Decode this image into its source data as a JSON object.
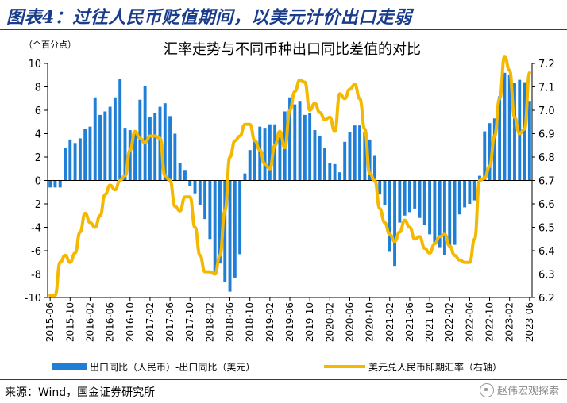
{
  "figure": {
    "title": "图表4：过往人民币贬值期间，以美元计价出口走弱",
    "source": "来源：Wind，国金证券研究所",
    "watermark": "赵伟宏观探索"
  },
  "chart_data": {
    "type": "bar+line",
    "title": "汇率走势与不同币种出口同比差值的对比",
    "unit_label": "（个百分点）",
    "ylim_left": [
      -10,
      10
    ],
    "ylim_right": [
      6.2,
      7.2
    ],
    "yticks_left": [
      "10",
      "8",
      "6",
      "4",
      "2",
      "0",
      "-2",
      "-4",
      "-6",
      "-8",
      "-10"
    ],
    "yticks_right": [
      "7.2",
      "7.1",
      "7.0",
      "6.9",
      "6.8",
      "6.7",
      "6.6",
      "6.5",
      "6.4",
      "6.3",
      "6.2"
    ],
    "x_tick_labels": [
      "2015-06",
      "2015-10",
      "2016-02",
      "2016-06",
      "2016-10",
      "2017-02",
      "2017-06",
      "2017-10",
      "2018-02",
      "2018-06",
      "2018-10",
      "2019-02",
      "2019-06",
      "2019-10",
      "2020-02",
      "2020-06",
      "2020-10",
      "2021-02",
      "2021-06",
      "2021-10",
      "2022-02",
      "2022-06",
      "2022-10",
      "2023-02",
      "2023-06"
    ],
    "months": 97,
    "colors": {
      "bar": "#1f7fd6",
      "line": "#f5b800"
    },
    "series": [
      {
        "name": "出口同比（人民币）-出口同比（美元）",
        "kind": "bar",
        "axis": "left",
        "values": [
          -0.6,
          -0.6,
          -0.6,
          2.8,
          3.5,
          3.2,
          3.6,
          4.4,
          4.6,
          7.1,
          5.6,
          5.9,
          6.3,
          7.1,
          8.7,
          4.5,
          4.3,
          4.2,
          6.9,
          8.1,
          5.4,
          5.8,
          6.3,
          6.6,
          5.5,
          4.0,
          1.5,
          0.9,
          -0.5,
          -1.1,
          -2.1,
          -3.3,
          -5.0,
          -8.1,
          -7.1,
          -8.7,
          -9.5,
          -8.3,
          -6.3,
          0.6,
          2.6,
          3.4,
          4.6,
          4.5,
          4.8,
          4.8,
          3.7,
          5.9,
          7.1,
          6.5,
          6.8,
          5.6,
          5.8,
          4.3,
          3.8,
          2.8,
          1.5,
          1.4,
          0.7,
          3.3,
          4.1,
          4.7,
          4.7,
          4.1,
          3.5,
          2.1,
          -1.2,
          -2.1,
          -6.1,
          -7.3,
          -3.6,
          -3.0,
          -2.7,
          -2.4,
          -3.2,
          -3.8,
          -4.6,
          -5.3,
          -5.7,
          -6.4,
          -5.7,
          -5.5,
          -2.9,
          -2.3,
          -2.0,
          -1.7,
          0.4,
          4.2,
          4.9,
          5.3,
          7.2,
          9.2,
          9.0,
          8.3,
          8.6,
          8.4,
          6.8
        ]
      },
      {
        "name": "美元兑人民币即期汇率（右轴）",
        "kind": "line",
        "axis": "right",
        "values": [
          6.21,
          6.21,
          6.35,
          6.38,
          6.35,
          6.39,
          6.48,
          6.56,
          6.52,
          6.5,
          6.55,
          6.64,
          6.68,
          6.66,
          6.7,
          6.72,
          6.83,
          6.91,
          6.88,
          6.86,
          6.89,
          6.89,
          6.88,
          6.72,
          6.7,
          6.59,
          6.57,
          6.63,
          6.63,
          6.5,
          6.38,
          6.31,
          6.31,
          6.3,
          6.38,
          6.57,
          6.8,
          6.87,
          6.89,
          6.94,
          6.94,
          6.87,
          6.83,
          6.77,
          6.75,
          6.85,
          6.91,
          6.84,
          7.0,
          7.08,
          7.13,
          7.12,
          7.0,
          7.03,
          6.99,
          6.96,
          6.97,
          6.91,
          7.07,
          7.05,
          7.09,
          7.11,
          7.05,
          6.92,
          6.73,
          6.7,
          6.58,
          6.52,
          6.47,
          6.44,
          6.48,
          6.53,
          6.5,
          6.45,
          6.46,
          6.41,
          6.39,
          6.43,
          6.46,
          6.47,
          6.42,
          6.38,
          6.36,
          6.35,
          6.35,
          6.45,
          6.7,
          6.71,
          6.76,
          6.89,
          7.05,
          7.23,
          7.17,
          6.97,
          6.9,
          6.92,
          7.16
        ]
      }
    ],
    "legend": {
      "bar_label": "出口同比（人民币）-出口同比（美元）",
      "line_label": "美元兑人民币即期汇率（右轴）",
      "position": "bottom"
    }
  }
}
